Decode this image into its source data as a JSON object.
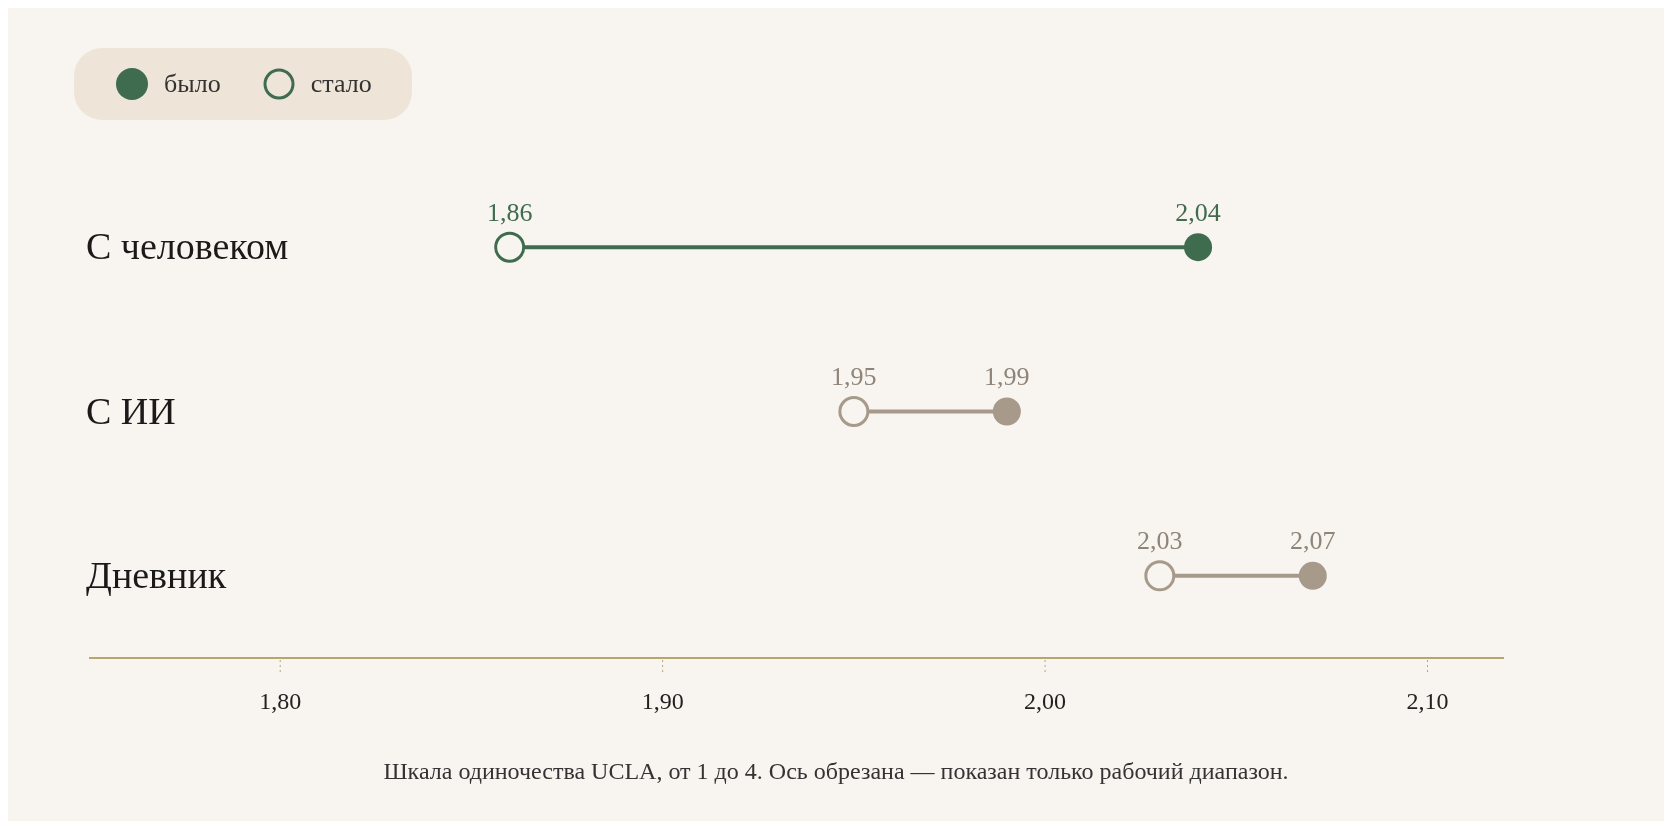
{
  "chart_data": {
    "type": "scatter",
    "orientation": "horizontal",
    "categories": [
      "С человеком",
      "С ИИ",
      "Дневник"
    ],
    "series": [
      {
        "name": "было",
        "values": [
          2.04,
          1.99,
          2.07
        ],
        "value_labels": [
          "2,04",
          "1,99",
          "2,07"
        ],
        "colors": [
          "#3f6b4f",
          "#a89a8a",
          "#a89a8a"
        ]
      },
      {
        "name": "стало",
        "values": [
          1.86,
          1.95,
          2.03
        ],
        "value_labels": [
          "1,86",
          "1,95",
          "2,03"
        ],
        "colors": [
          "#3f6b4f",
          "#a89a8a",
          "#a89a8a"
        ]
      }
    ],
    "xlim": [
      1.75,
      2.12
    ],
    "xticks": [
      {
        "value": 1.8,
        "label": "1,80"
      },
      {
        "value": 1.9,
        "label": "1,90"
      },
      {
        "value": 2.0,
        "label": "2,00"
      },
      {
        "value": 2.1,
        "label": "2,10"
      }
    ],
    "legend": "top left",
    "marker": "circle",
    "annotations": [
      "Шкала одиночества UCLA, от 1 до 4. Ось обрезана — показан только рабочий диапазон."
    ]
  }
}
